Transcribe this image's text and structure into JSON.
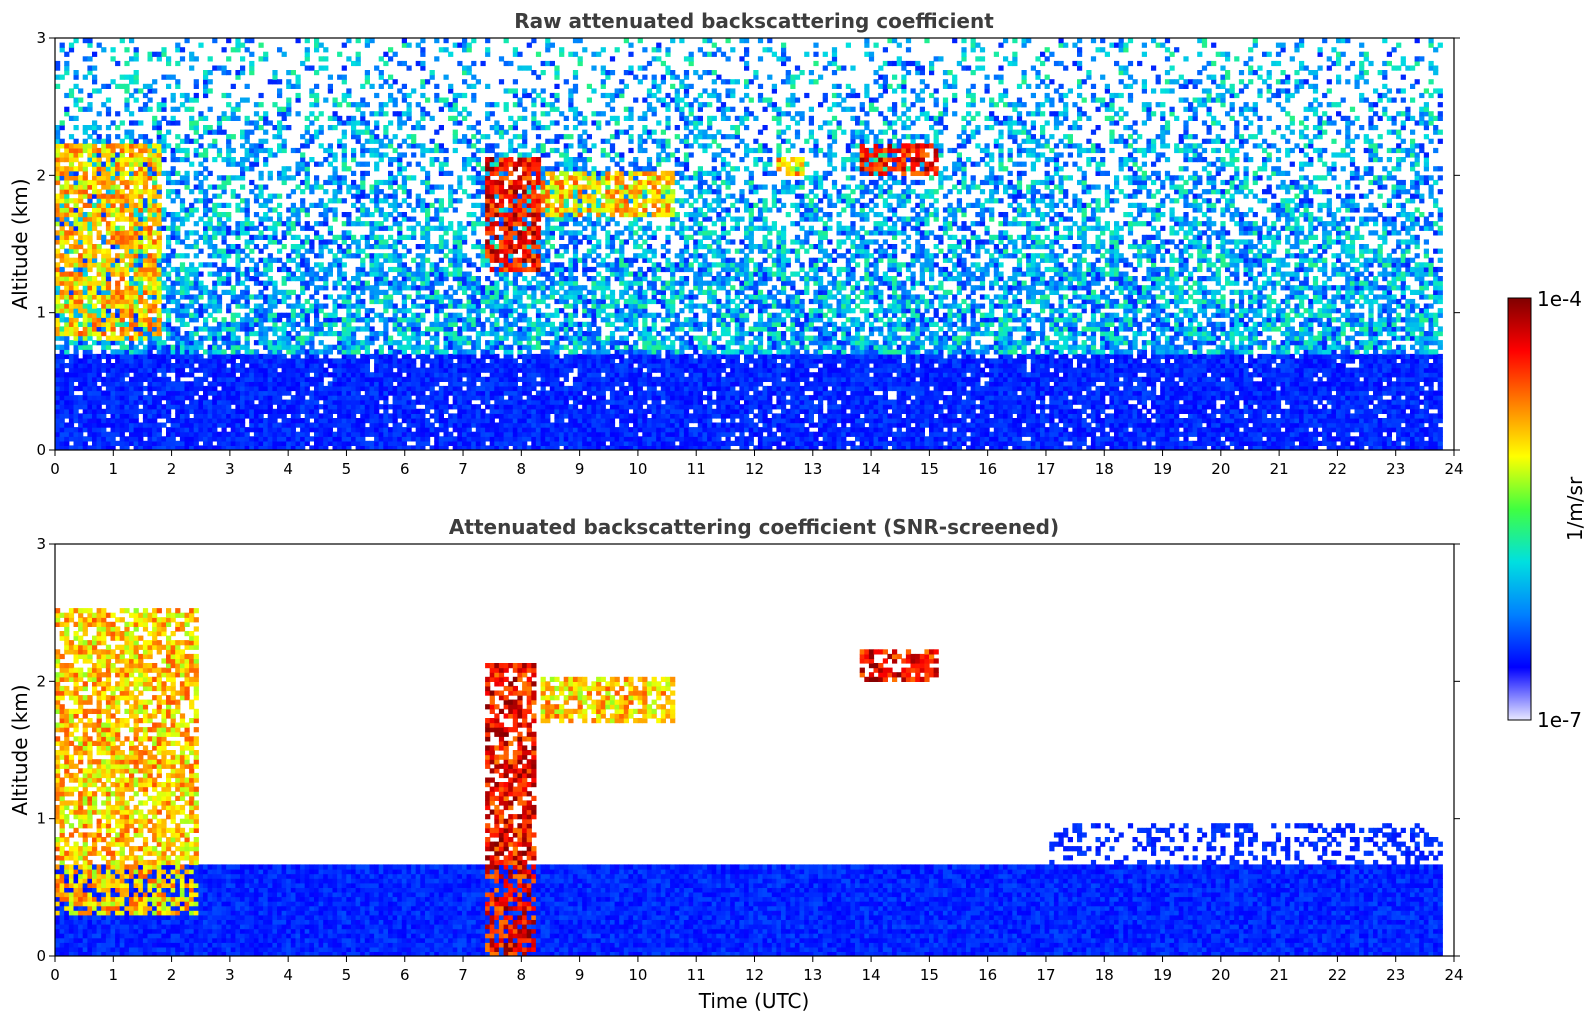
{
  "chart_data": [
    {
      "type": "heatmap",
      "title": "Raw attenuated backscattering coefficient",
      "xlabel": "",
      "ylabel": "Altitude (km)",
      "xlim": [
        0,
        24
      ],
      "ylim": [
        0,
        3
      ],
      "xticks": [
        "0",
        "1",
        "2",
        "3",
        "4",
        "5",
        "6",
        "7",
        "8",
        "9",
        "10",
        "11",
        "12",
        "13",
        "14",
        "15",
        "16",
        "17",
        "18",
        "19",
        "20",
        "21",
        "22",
        "23",
        "24"
      ],
      "yticks": [
        "0",
        "1",
        "2",
        "3"
      ],
      "screened": false,
      "features": {
        "boundary_layer_top_km": 0.7,
        "noise_floor": "speckled blue/cyan above boundary layer",
        "clouds": [
          {
            "t0": 0.0,
            "t1": 1.8,
            "alt0": 0.8,
            "alt1": 2.2,
            "intensity": "high"
          },
          {
            "t0": 7.3,
            "t1": 8.3,
            "alt0": 1.3,
            "alt1": 2.1,
            "intensity": "very high"
          },
          {
            "t0": 8.3,
            "t1": 10.6,
            "alt0": 1.7,
            "alt1": 2.0,
            "intensity": "high"
          },
          {
            "t0": 12.3,
            "t1": 12.8,
            "alt0": 2.0,
            "alt1": 2.1,
            "intensity": "high"
          },
          {
            "t0": 13.8,
            "t1": 15.1,
            "alt0": 2.0,
            "alt1": 2.2,
            "intensity": "very high"
          }
        ]
      }
    },
    {
      "type": "heatmap",
      "title": "Attenuated backscattering coefficient (SNR-screened)",
      "xlabel": "Time (UTC)",
      "ylabel": "Altitude (km)",
      "xlim": [
        0,
        24
      ],
      "ylim": [
        0,
        3
      ],
      "xticks": [
        "0",
        "1",
        "2",
        "3",
        "4",
        "5",
        "6",
        "7",
        "8",
        "9",
        "10",
        "11",
        "12",
        "13",
        "14",
        "15",
        "16",
        "17",
        "18",
        "19",
        "20",
        "21",
        "22",
        "23",
        "24"
      ],
      "yticks": [
        "0",
        "1",
        "2",
        "3"
      ],
      "screened": true,
      "features": {
        "boundary_layer_top_km": 0.65,
        "clouds": [
          {
            "t0": 0.0,
            "t1": 2.4,
            "alt0": 0.3,
            "alt1": 2.5,
            "intensity": "high"
          },
          {
            "t0": 7.3,
            "t1": 8.2,
            "alt0": 0.0,
            "alt1": 2.1,
            "intensity": "very high"
          },
          {
            "t0": 8.3,
            "t1": 10.6,
            "alt0": 1.7,
            "alt1": 2.0,
            "intensity": "high"
          },
          {
            "t0": 13.8,
            "t1": 15.1,
            "alt0": 2.0,
            "alt1": 2.2,
            "intensity": "very high"
          }
        ]
      }
    }
  ],
  "colorbar": {
    "label": "1/m/sr",
    "max_label": "1e-4",
    "min_label": "1e-7",
    "colormap": [
      "#e8e8ff",
      "#0000ff",
      "#0080ff",
      "#00e0e0",
      "#40ff40",
      "#ffff00",
      "#ff8000",
      "#ff0000",
      "#800000"
    ]
  }
}
